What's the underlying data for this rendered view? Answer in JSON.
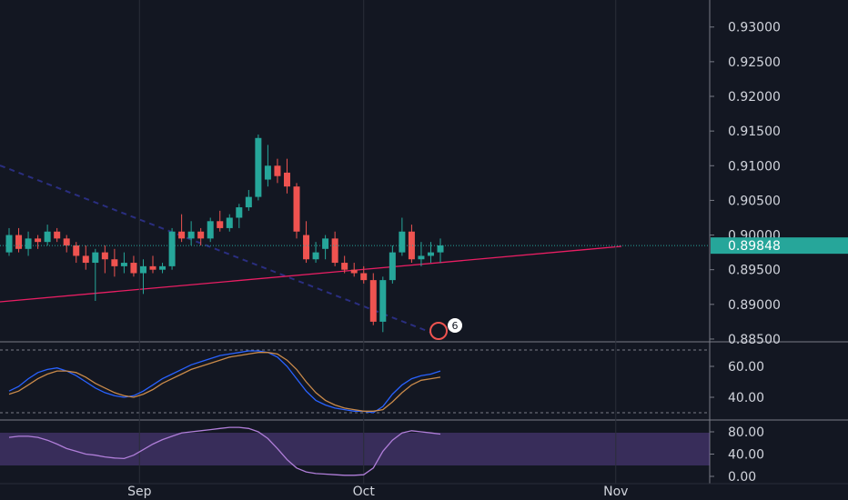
{
  "chart_data": [
    {
      "type": "candlestick",
      "open": [
        0.8975,
        0.9,
        0.898,
        0.8995,
        0.899,
        0.9005,
        0.8995,
        0.8985,
        0.897,
        0.896,
        0.8975,
        0.8965,
        0.8955,
        0.896,
        0.8945,
        0.8955,
        0.895,
        0.8955,
        0.9005,
        0.8995,
        0.9005,
        0.8995,
        0.902,
        0.901,
        0.9025,
        0.904,
        0.9055,
        0.908,
        0.91,
        0.909,
        0.907,
        0.9,
        0.8965,
        0.898,
        0.8995,
        0.896,
        0.895,
        0.8945,
        0.8935,
        0.8875,
        0.8935,
        0.8975,
        0.9005,
        0.8965,
        0.897,
        0.8975
      ],
      "high": [
        0.901,
        0.901,
        0.9005,
        0.9,
        0.9015,
        0.901,
        0.9,
        0.899,
        0.8985,
        0.898,
        0.8985,
        0.898,
        0.8975,
        0.897,
        0.8965,
        0.897,
        0.896,
        0.901,
        0.903,
        0.902,
        0.901,
        0.9025,
        0.9035,
        0.903,
        0.9045,
        0.9065,
        0.9145,
        0.913,
        0.911,
        0.911,
        0.9075,
        0.902,
        0.899,
        0.9,
        0.9005,
        0.897,
        0.896,
        0.8955,
        0.8945,
        0.894,
        0.8985,
        0.9025,
        0.9015,
        0.899,
        0.899,
        0.8995
      ],
      "low": [
        0.897,
        0.8975,
        0.897,
        0.898,
        0.8985,
        0.899,
        0.8975,
        0.896,
        0.895,
        0.8905,
        0.8945,
        0.894,
        0.8945,
        0.894,
        0.8915,
        0.8945,
        0.8945,
        0.895,
        0.899,
        0.8985,
        0.8985,
        0.899,
        0.9005,
        0.9005,
        0.901,
        0.9035,
        0.905,
        0.907,
        0.9075,
        0.906,
        0.8995,
        0.896,
        0.896,
        0.8965,
        0.8955,
        0.8945,
        0.894,
        0.893,
        0.887,
        0.886,
        0.893,
        0.897,
        0.896,
        0.8955,
        0.896,
        0.896
      ],
      "close": [
        0.9,
        0.898,
        0.8995,
        0.899,
        0.9005,
        0.8995,
        0.8985,
        0.897,
        0.896,
        0.8975,
        0.8965,
        0.8955,
        0.896,
        0.8945,
        0.8955,
        0.895,
        0.8955,
        0.9005,
        0.8995,
        0.9005,
        0.8995,
        0.902,
        0.901,
        0.9025,
        0.904,
        0.9055,
        0.914,
        0.91,
        0.9085,
        0.907,
        0.9005,
        0.8965,
        0.8975,
        0.8995,
        0.896,
        0.895,
        0.8945,
        0.8935,
        0.8875,
        0.8935,
        0.8975,
        0.9005,
        0.8965,
        0.897,
        0.8975,
        0.8985
      ],
      "up_color": "#26a69a",
      "down_color": "#ef5350",
      "xlim": [
        -0.95,
        73.1
      ],
      "xticks": [
        {
          "value": 13.6,
          "label": "Sep"
        },
        {
          "value": 37.0,
          "label": "Oct"
        },
        {
          "value": 63.3,
          "label": "Nov"
        }
      ],
      "ylim": [
        0.8846,
        0.9339
      ],
      "yticks": [
        {
          "value": 0.93,
          "label": "0.93000"
        },
        {
          "value": 0.925,
          "label": "0.92500"
        },
        {
          "value": 0.92,
          "label": "0.92000"
        },
        {
          "value": 0.915,
          "label": "0.91500"
        },
        {
          "value": 0.91,
          "label": "0.91000"
        },
        {
          "value": 0.905,
          "label": "0.90500"
        },
        {
          "value": 0.9,
          "label": "0.90000"
        },
        {
          "value": 0.895,
          "label": "0.89500"
        },
        {
          "value": 0.89,
          "label": "0.89000"
        },
        {
          "value": 0.885,
          "label": "0.88500"
        }
      ],
      "last_price": {
        "value": 0.89848,
        "label": "0.89848"
      },
      "event_badge": "6"
    },
    {
      "type": "line",
      "series": [
        {
          "color": "#2962ff",
          "values": [
            44,
            47,
            52,
            56,
            58,
            59,
            57,
            54,
            50,
            46,
            43,
            41,
            40,
            41,
            44,
            48,
            52,
            55,
            58,
            61,
            63,
            65,
            67,
            68,
            69,
            70,
            70,
            69,
            66,
            60,
            52,
            44,
            38,
            35,
            33,
            32,
            31,
            31,
            30,
            34,
            42,
            48,
            52,
            54,
            55,
            57
          ]
        },
        {
          "color": "#c98a4b",
          "values": [
            42,
            44,
            48,
            52,
            55,
            57,
            57,
            56,
            53,
            49,
            46,
            43,
            41,
            40,
            42,
            45,
            49,
            52,
            55,
            58,
            60,
            62,
            64,
            66,
            67,
            68,
            69,
            69,
            68,
            64,
            58,
            50,
            43,
            38,
            35,
            33,
            32,
            31,
            31,
            32,
            37,
            43,
            48,
            51,
            52,
            53
          ]
        }
      ],
      "ylim": [
        25.3,
        74.7
      ],
      "yticks": [
        {
          "value": 60,
          "label": "60.00"
        },
        {
          "value": 40,
          "label": "40.00"
        }
      ]
    },
    {
      "type": "line",
      "series": [
        {
          "color": "#b07ed9",
          "values": [
            70,
            72,
            72,
            70,
            65,
            58,
            50,
            45,
            40,
            38,
            35,
            33,
            32,
            38,
            48,
            58,
            66,
            72,
            78,
            80,
            82,
            84,
            86,
            88,
            88,
            86,
            80,
            68,
            50,
            30,
            15,
            8,
            5,
            4,
            3,
            2,
            2,
            3,
            15,
            45,
            65,
            78,
            82,
            80,
            78,
            76
          ]
        }
      ],
      "ylim": [
        -9.8,
        99.6
      ],
      "yticks": [
        {
          "value": 80,
          "label": "80.00"
        },
        {
          "value": 40,
          "label": "40.00"
        },
        {
          "value": 0,
          "label": "0.00"
        }
      ]
    }
  ]
}
